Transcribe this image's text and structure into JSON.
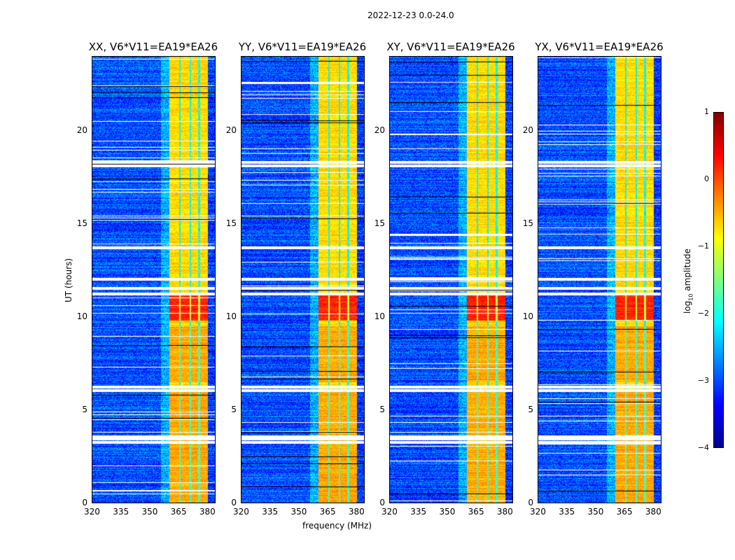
{
  "suptitle": "2022-12-23 0.0-24.0",
  "chart_data": {
    "type": "heatmap",
    "title": "2022-12-23 0.0-24.0",
    "xlabel": "frequency (MHz)",
    "ylabel": "UT (hours)",
    "xlim": [
      320,
      384.4
    ],
    "ylim": [
      0,
      24
    ],
    "xticks": [
      "320",
      "335",
      "350",
      "365",
      "380"
    ],
    "yticks": [
      "0",
      "5",
      "10",
      "15",
      "20"
    ],
    "panels": [
      {
        "title": "XX, V6*V11=EA19*EA26"
      },
      {
        "title": "YY, V6*V11=EA19*EA26"
      },
      {
        "title": "XY, V6*V11=EA19*EA26"
      },
      {
        "title": "YX, V6*V11=EA19*EA26"
      }
    ],
    "colorbar": {
      "label": "log10 amplitude",
      "label_main": "log",
      "label_sub": "10",
      "label_rest": " amplitude",
      "range": [
        -4,
        1
      ],
      "ticks": [
        "1",
        "0",
        "−1",
        "−2",
        "−3",
        "−4"
      ],
      "colormap": "jet"
    },
    "bright_band_mhz": [
      360.4,
      380.4
    ],
    "background_level": -3,
    "band_level": -0.7,
    "peak_hours": [
      9.8,
      11.2
    ],
    "flagged_hours": [
      3.3,
      3.5,
      3.6,
      6.1,
      6.3,
      11.3,
      11.6,
      12.1,
      13.8,
      18.2,
      18.4
    ]
  }
}
